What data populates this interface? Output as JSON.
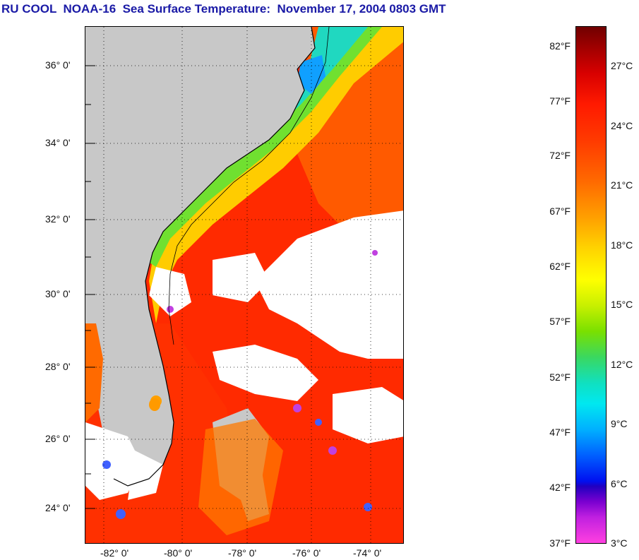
{
  "title": "RU COOL  NOAA-16  Sea Surface Temperature:  November 17, 2004 0803 GMT",
  "map": {
    "lat_labels": [
      "36° 0'",
      "34° 0'",
      "32° 0'",
      "30° 0'",
      "28° 0'",
      "26° 0'",
      "24° 0'"
    ],
    "lon_labels": [
      "-82° 0'",
      "-80° 0'",
      "-78° 0'",
      "-76° 0'",
      "-74° 0'"
    ],
    "colors": {
      "land": "#c8c8c8",
      "cloud": "#ffffff",
      "gulf_stream": "#ff2200",
      "shelf": "#ff7a00",
      "cold_shelf": "#20d8a0"
    }
  },
  "colorbar": {
    "fahrenheit": [
      "82°F",
      "77°F",
      "72°F",
      "67°F",
      "62°F",
      "57°F",
      "52°F",
      "47°F",
      "42°F",
      "37°F"
    ],
    "celsius": [
      "27°C",
      "24°C",
      "21°C",
      "18°C",
      "15°C",
      "12°C",
      "9°C",
      "6°C",
      "3°C"
    ]
  }
}
